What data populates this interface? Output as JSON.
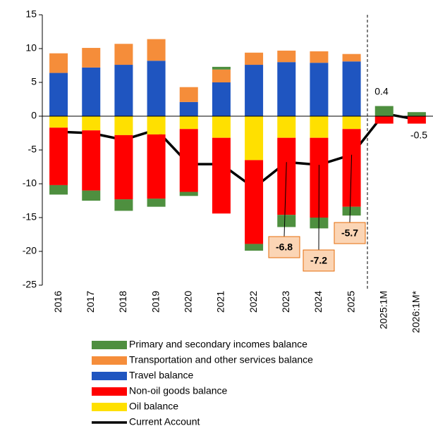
{
  "chart_data": {
    "type": "bar",
    "categories": [
      "2016",
      "2017",
      "2018",
      "2019",
      "2020",
      "2021",
      "2022",
      "2023",
      "2024",
      "2025",
      "2025:1M",
      "2026:1M*"
    ],
    "series": [
      {
        "name": "Primary and secondary incomes balance",
        "color": "#4e8f3f",
        "values": [
          -1.4,
          -1.5,
          -1.7,
          -1.2,
          -0.6,
          0.4,
          -1.0,
          -1.8,
          -1.6,
          -1.3,
          1.5,
          0.6
        ]
      },
      {
        "name": "Transportation and other services balance",
        "color": "#f58d3a",
        "values": [
          2.9,
          2.9,
          3.1,
          3.2,
          2.2,
          1.9,
          1.8,
          1.7,
          1.7,
          1.1,
          0,
          0
        ]
      },
      {
        "name": "Travel balance",
        "color": "#1f55c0",
        "values": [
          6.4,
          7.2,
          7.6,
          8.2,
          2.1,
          5.0,
          7.6,
          8.0,
          7.9,
          8.1,
          0,
          0
        ]
      },
      {
        "name": "Non-oil goods balance",
        "color": "#ff0000",
        "values": [
          -8.5,
          -8.9,
          -9.5,
          -9.5,
          -9.3,
          -11.2,
          -12.4,
          -11.4,
          -11.8,
          -11.5,
          -1.1,
          -1.1
        ]
      },
      {
        "name": "Oil balance",
        "color": "#ffe000",
        "values": [
          -1.7,
          -2.1,
          -2.8,
          -2.7,
          -1.9,
          -3.2,
          -6.5,
          -3.2,
          -3.2,
          -1.9,
          0,
          0
        ]
      },
      {
        "name": "Current Account",
        "color": "#000000",
        "type": "line",
        "values": [
          -2.3,
          -2.5,
          -3.5,
          -2.0,
          -7.1,
          -7.1,
          -10.6,
          -6.8,
          -7.2,
          -5.7,
          0.4,
          -0.5
        ]
      }
    ],
    "ylim": [
      -25,
      15
    ],
    "yticks": [
      -25,
      -20,
      -15,
      -10,
      -5,
      0,
      5,
      10,
      15
    ],
    "grid": false
  }
}
